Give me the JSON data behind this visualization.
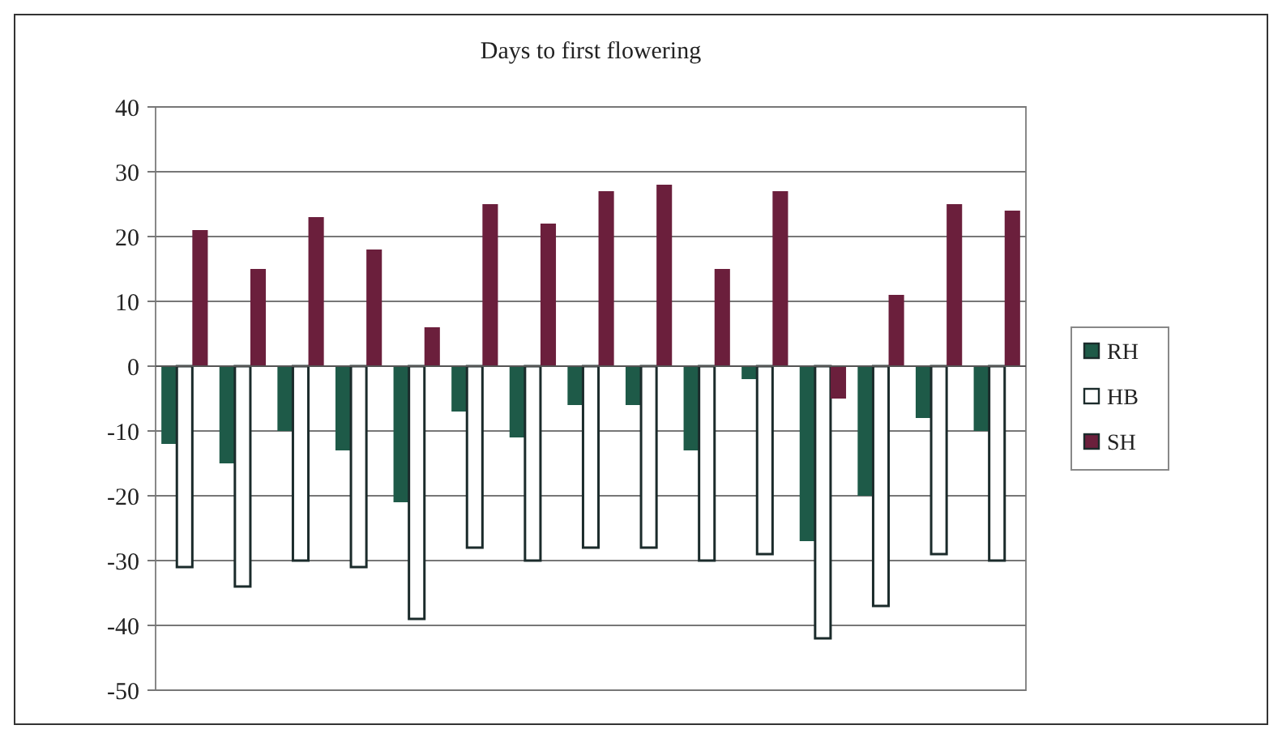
{
  "chart_data": {
    "type": "bar",
    "title": "Days to first flowering",
    "categories": [
      null,
      null,
      null,
      null,
      null,
      null,
      null,
      null,
      null,
      null,
      null,
      null,
      null,
      null,
      null
    ],
    "series": [
      {
        "name": "RH",
        "color": "#1e5a48",
        "values": [
          -12,
          -15,
          -10,
          -13,
          -21,
          -7,
          -11,
          -6,
          -6,
          -13,
          -2,
          -27,
          -20,
          -8,
          -10
        ]
      },
      {
        "name": "HB",
        "color": "#ffffff",
        "values": [
          -31,
          -34,
          -30,
          -31,
          -39,
          -28,
          -30,
          -28,
          -28,
          -30,
          -29,
          -42,
          -37,
          -29,
          -30
        ]
      },
      {
        "name": "SH",
        "color": "#6b1f3c",
        "values": [
          21,
          15,
          23,
          18,
          6,
          25,
          22,
          27,
          28,
          15,
          27,
          -5,
          11,
          25,
          24
        ]
      }
    ],
    "ylim": [
      -50,
      40
    ],
    "yticks": [
      -50,
      -40,
      -30,
      -20,
      -10,
      0,
      10,
      20,
      30,
      40
    ],
    "grid": "y",
    "legend": "right"
  }
}
